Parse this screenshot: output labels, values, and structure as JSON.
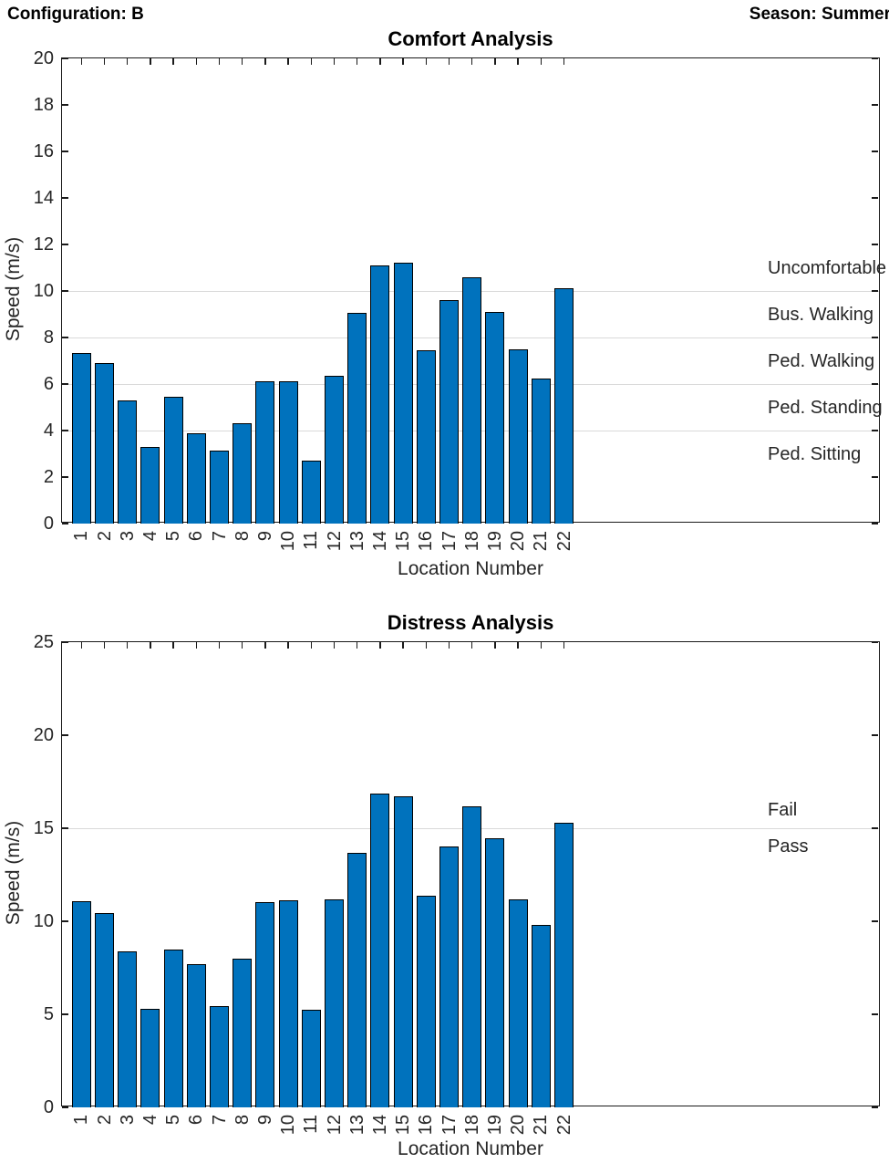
{
  "header": {
    "left": "Configuration: B",
    "right": "Season: Summer"
  },
  "chart_data": [
    {
      "type": "bar",
      "title": "Comfort Analysis",
      "xlabel": "Location Number",
      "ylabel": "Speed (m/s)",
      "categories": [
        "1",
        "2",
        "3",
        "4",
        "5",
        "6",
        "7",
        "8",
        "9",
        "10",
        "11",
        "12",
        "13",
        "14",
        "15",
        "16",
        "17",
        "18",
        "19",
        "20",
        "21",
        "22"
      ],
      "values": [
        7.35,
        6.9,
        5.3,
        3.3,
        5.45,
        3.9,
        3.15,
        4.3,
        6.1,
        6.1,
        2.7,
        6.35,
        9.05,
        11.1,
        11.2,
        7.45,
        9.6,
        10.6,
        9.1,
        7.5,
        6.25,
        10.1
      ],
      "ylim": [
        0,
        20
      ],
      "yticks": [
        0,
        2,
        4,
        6,
        8,
        10,
        12,
        14,
        16,
        18,
        20
      ],
      "gridlines": [
        4,
        6,
        8,
        10
      ],
      "zone_labels": [
        {
          "text": "Uncomfortable",
          "y": 11
        },
        {
          "text": "Bus. Walking",
          "y": 9
        },
        {
          "text": "Ped. Walking",
          "y": 7
        },
        {
          "text": "Ped. Standing",
          "y": 5
        },
        {
          "text": "Ped. Sitting",
          "y": 3
        }
      ],
      "legend_position": "inside-right",
      "grid": "horizontal-thresholds-only",
      "bar_color": "#0072BD",
      "bar_edge_color": "#000000",
      "grid_color": "#d9d9d9"
    },
    {
      "type": "bar",
      "title": "Distress Analysis",
      "xlabel": "Location Number",
      "ylabel": "Speed (m/s)",
      "categories": [
        "1",
        "2",
        "3",
        "4",
        "5",
        "6",
        "7",
        "8",
        "9",
        "10",
        "11",
        "12",
        "13",
        "14",
        "15",
        "16",
        "17",
        "18",
        "19",
        "20",
        "21",
        "22"
      ],
      "values": [
        11.1,
        10.45,
        8.4,
        5.3,
        8.5,
        7.7,
        5.45,
        8.0,
        11.05,
        11.15,
        5.25,
        11.2,
        13.7,
        16.85,
        16.7,
        11.35,
        14.0,
        16.2,
        14.45,
        11.2,
        9.8,
        15.3
      ],
      "ylim": [
        0,
        25
      ],
      "yticks": [
        0,
        5,
        10,
        15,
        20,
        25
      ],
      "gridlines": [
        15
      ],
      "zone_labels": [
        {
          "text": "Fail",
          "y": 16
        },
        {
          "text": "Pass",
          "y": 14
        }
      ],
      "legend_position": "inside-right",
      "grid": "horizontal-thresholds-only",
      "bar_color": "#0072BD",
      "bar_edge_color": "#000000",
      "grid_color": "#d9d9d9"
    }
  ]
}
